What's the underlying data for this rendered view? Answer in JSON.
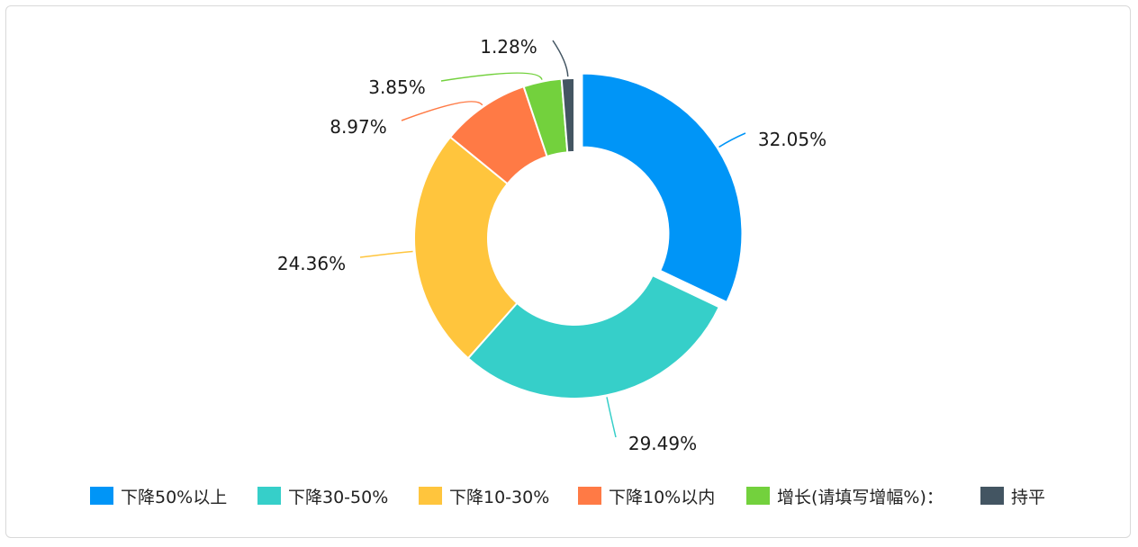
{
  "chart_data": {
    "type": "pie",
    "style": "donut",
    "categories": [
      "下降50%以上",
      "下降30-50%",
      "下降10-30%",
      "下降10%以内",
      "增长(请填写增幅%)：",
      "持平"
    ],
    "values": [
      32.05,
      29.49,
      24.36,
      8.97,
      3.85,
      1.28
    ],
    "labels": [
      "32.05%",
      "29.49%",
      "24.36%",
      "8.97%",
      "3.85%",
      "1.28%"
    ],
    "colors": [
      "#0095f7",
      "#36cfc9",
      "#ffc53d",
      "#ff7a45",
      "#73d13d",
      "#435562"
    ],
    "highlighted_slice": 0,
    "legend_position": "bottom"
  }
}
